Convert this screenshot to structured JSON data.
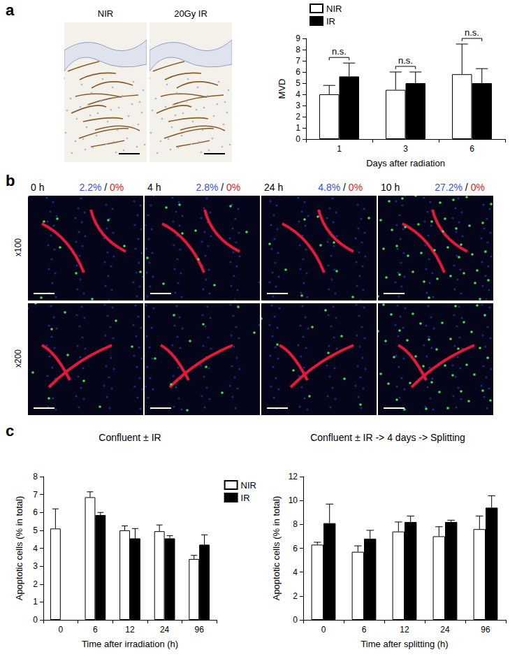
{
  "panel_labels": [
    "a",
    "b",
    "c"
  ],
  "panel_a_images": [
    "NIR",
    "20Gy IR"
  ],
  "panel_b": {
    "separator": "/",
    "columns": [
      {
        "time": "0 h",
        "blue": "2.2%",
        "red": "0%"
      },
      {
        "time": "4 h",
        "blue": "2.8%",
        "red": "0%"
      },
      {
        "time": "24 h",
        "blue": "4.8%",
        "red": "0%"
      },
      {
        "time": "10 h",
        "blue": "27.2%",
        "red": "0%"
      }
    ],
    "rows": [
      "x100",
      "x200"
    ]
  },
  "chart_data": [
    {
      "type": "bar",
      "categories": [
        "1",
        "3",
        "6"
      ],
      "x_label": "Days after radiation",
      "y_label": "MVD",
      "ylim": [
        0,
        9
      ],
      "yticks": [
        0,
        1,
        2,
        3,
        4,
        5,
        6,
        7,
        8,
        9
      ],
      "grid": false,
      "legend": "top-left",
      "series": [
        {
          "name": "NIR",
          "color": "#ffffff",
          "values": [
            4.0,
            4.4,
            5.8
          ],
          "errors": [
            0.8,
            1.6,
            2.7
          ]
        },
        {
          "name": "IR",
          "color": "#000000",
          "values": [
            5.6,
            5.0,
            5.0
          ],
          "errors": [
            1.2,
            1.0,
            1.3
          ]
        }
      ],
      "annotations": [
        {
          "category": "1",
          "text": "n.s."
        },
        {
          "category": "3",
          "text": "n.s."
        },
        {
          "category": "6",
          "text": "n.s."
        }
      ]
    },
    {
      "type": "bar",
      "title": "Confluent ± IR",
      "categories": [
        "0",
        "6",
        "12",
        "24",
        "96"
      ],
      "x_label": "Time after irradiation (h)",
      "y_label": "Apoptotic cells (% in total)",
      "ylim": [
        0,
        8
      ],
      "yticks": [
        0,
        1,
        2,
        3,
        4,
        5,
        6,
        7,
        8
      ],
      "grid": false,
      "legend": "top-right",
      "series": [
        {
          "name": "NIR",
          "color": "#ffffff",
          "values": [
            5.1,
            6.85,
            5.0,
            4.95,
            3.4
          ],
          "errors": [
            1.1,
            0.3,
            0.25,
            0.35,
            0.2
          ]
        },
        {
          "name": "IR",
          "color": "#000000",
          "values": [
            null,
            5.85,
            4.55,
            4.55,
            4.2
          ],
          "errors": [
            null,
            0.15,
            0.55,
            0.15,
            0.55
          ]
        }
      ]
    },
    {
      "type": "bar",
      "title": "Confluent ± IR -> 4 days -> Splitting",
      "categories": [
        "0",
        "6",
        "12",
        "24",
        "96"
      ],
      "x_label": "Time after splitting (h)",
      "y_label": "Apoptotic cells (% in total)",
      "ylim": [
        0,
        12
      ],
      "yticks": [
        0,
        2,
        4,
        6,
        8,
        10,
        12
      ],
      "grid": false,
      "series": [
        {
          "name": "NIR",
          "color": "#ffffff",
          "values": [
            6.3,
            5.7,
            7.4,
            7.0,
            7.6
          ],
          "errors": [
            0.2,
            0.5,
            0.8,
            0.8,
            1.1
          ]
        },
        {
          "name": "IR",
          "color": "#000000",
          "values": [
            8.1,
            6.8,
            8.2,
            8.2,
            9.4
          ],
          "errors": [
            1.6,
            0.7,
            0.5,
            0.15,
            1.0
          ]
        }
      ]
    }
  ]
}
